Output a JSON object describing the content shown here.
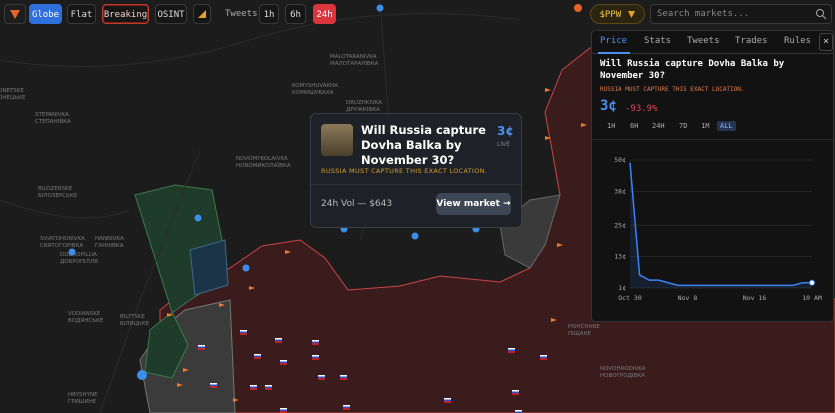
{
  "toolbar": {
    "buttons": [
      "Globe",
      "Flat",
      "Breaking",
      "OSINT"
    ],
    "tweets_label": "Tweets:",
    "ranges": [
      "1h",
      "6h",
      "24h"
    ],
    "token": "$PPW",
    "search_placeholder": "Search markets..."
  },
  "map": {
    "labels": [
      [
        "ONETSKE",
        "ОНЕЦЬКЕ"
      ],
      [
        "STEPANIVKA",
        "СТЕПАНІВКА"
      ],
      [
        "BILOZERSKE",
        "БІЛОЗЕРСЬКЕ"
      ],
      [
        "SVIATOHORIVKA",
        "СВЯТОГОРІВКА"
      ],
      [
        "HANNIVKA",
        "ГАННІВКА"
      ],
      [
        "DOBROPILLIA",
        "ДОБРОПІЛЛЯ"
      ],
      [
        "VODIANSKE",
        "ВОДЯНСЬКЕ"
      ],
      [
        "BILYTSKE",
        "БІЛИЦЬКЕ"
      ],
      [
        "MALOTARANIVKA",
        "МАЛОТАРАНІВКА"
      ],
      [
        "KOMYSHUVAKHA",
        "КОМИШУВАХА"
      ],
      [
        "DRUZHKIVKA",
        "ДРУЖКІВКА"
      ],
      [
        "NOVOMYKOLAIVKA",
        "НОВОМИКОЛАЇВКА"
      ],
      [
        "HRYSHYNE",
        "ГРИШИНЕ"
      ],
      [
        "PISHCHANE",
        "ПІЩАНЕ"
      ],
      [
        "NOVOHRODIVKA",
        "НОВОГРОДІВКА"
      ]
    ]
  },
  "popup": {
    "title": "Will Russia capture Dovha Balka by November 30?",
    "price": "3¢",
    "status": "LIVE",
    "note": "RUSSIA MUST CAPTURE THIS EXACT LOCATION.",
    "volume": "24h Vol — $643",
    "button": "View market →"
  },
  "panel": {
    "tabs": [
      "Price",
      "Stats",
      "Tweets",
      "Trades",
      "Rules"
    ],
    "close": "×",
    "title": "Will Russia capture Dovha Balka by November 30?",
    "note": "RUSSIA MUST CAPTURE THIS EXACT LOCATION.",
    "price": "3¢",
    "change": "-93.9%",
    "ranges": [
      "1H",
      "6H",
      "24H",
      "7D",
      "1M",
      "ALL"
    ]
  },
  "chart_data": {
    "type": "line",
    "categories": [
      "Oct 30",
      null,
      null,
      null,
      null,
      null,
      "Nov 8",
      null,
      null,
      null,
      null,
      null,
      null,
      "Nov 16",
      null,
      null,
      null,
      null,
      null,
      "10 AM"
    ],
    "series": [
      {
        "name": "Price",
        "color": "#3b82f6",
        "values": [
          49,
          6,
          4,
          4,
          3,
          2,
          2,
          2,
          2,
          2,
          2,
          2,
          2,
          2,
          2,
          2,
          2,
          2,
          3,
          3
        ]
      }
    ],
    "ylim": [
      1,
      50
    ],
    "yticks": [
      {
        "value": 50,
        "label": "50¢"
      },
      {
        "value": 38,
        "label": "38¢"
      },
      {
        "value": 25,
        "label": "25¢"
      },
      {
        "value": 13,
        "label": "13¢"
      },
      {
        "value": 1,
        "label": "1¢"
      }
    ],
    "grid": true
  }
}
